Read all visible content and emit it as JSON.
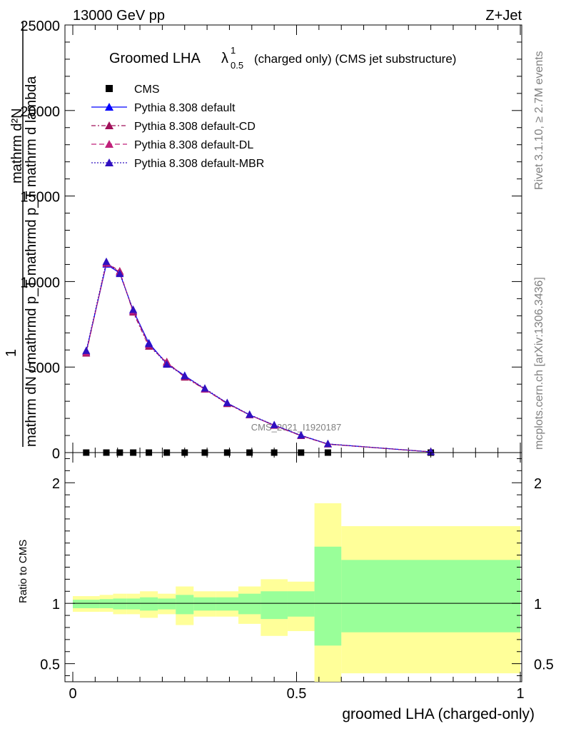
{
  "header": {
    "left": "13000 GeV pp",
    "right": "Z+Jet"
  },
  "side_labels": {
    "rivet": "Rivet 3.1.10, ≥ 2.7M events",
    "mcplots": "mcplots.cern.ch [arXiv:1306.3436]"
  },
  "chart_data": [
    {
      "type": "line",
      "title_main": "Groomed LHA",
      "title_lambda": "λ",
      "title_sup": "1",
      "title_sub": "0.5",
      "title_rest": "(charged only) (CMS jet substructure)",
      "ylabel_numerator": "1",
      "ylabel_denominator": "mathrm dN / mathrmd p_T mathrmd p_T mathrm d lambda",
      "ylabel_overlap": "mathrm d²N",
      "watermark": "CMS_2021_I1920187",
      "ylim": [
        0,
        25000
      ],
      "yticks": [
        "0",
        "5000",
        "10000",
        "15000",
        "20000",
        "25000"
      ],
      "x": [
        0.03,
        0.075,
        0.105,
        0.135,
        0.17,
        0.21,
        0.25,
        0.295,
        0.345,
        0.395,
        0.45,
        0.51,
        0.57,
        0.8
      ],
      "cms_values": [
        0,
        0,
        0,
        0,
        0,
        0,
        0,
        0,
        0,
        0,
        0,
        0,
        0,
        0
      ],
      "series": [
        {
          "name": "CMS",
          "color": "#000000",
          "marker": "square"
        },
        {
          "name": "Pythia 8.308 default",
          "color": "#0000ff",
          "dash": "",
          "values": [
            5900,
            11000,
            10500,
            8300,
            6400,
            5200,
            4500,
            3700,
            2900,
            2200,
            1600,
            1000,
            500,
            40
          ]
        },
        {
          "name": "Pythia 8.308 default-CD",
          "color": "#a0105a",
          "dash": "6,3,2,3",
          "values": [
            5800,
            11100,
            10600,
            8200,
            6200,
            5300,
            4400,
            3700,
            2850,
            2200,
            1580,
            980,
            490,
            40
          ]
        },
        {
          "name": "Pythia 8.308 default-DL",
          "color": "#c0207a",
          "dash": "7,4",
          "values": [
            5850,
            11050,
            10550,
            8250,
            6300,
            5250,
            4450,
            3700,
            2880,
            2200,
            1590,
            990,
            495,
            40
          ]
        },
        {
          "name": "Pythia 8.308 default-MBR",
          "color": "#3010c0",
          "dash": "2,2",
          "values": [
            5950,
            11150,
            10450,
            8350,
            6350,
            5150,
            4480,
            3750,
            2900,
            2220,
            1610,
            1010,
            505,
            40
          ]
        }
      ]
    },
    {
      "type": "area",
      "ylabel": "Ratio to CMS",
      "xlabel": "groomed LHA (charged-only)",
      "ylim": [
        0.35,
        2.25
      ],
      "yticks": [
        "0.5",
        "1",
        "2"
      ],
      "xlim": [
        0,
        1
      ],
      "xticks": [
        "0",
        "0.5",
        "1"
      ],
      "bins": [
        {
          "x0": 0.0,
          "x1": 0.06,
          "y_lo": 0.93,
          "y_hi": 1.06,
          "g_lo": 0.96,
          "g_hi": 1.03
        },
        {
          "x0": 0.06,
          "x1": 0.09,
          "y_lo": 0.93,
          "y_hi": 1.07,
          "g_lo": 0.96,
          "g_hi": 1.035
        },
        {
          "x0": 0.09,
          "x1": 0.12,
          "y_lo": 0.91,
          "y_hi": 1.08,
          "g_lo": 0.95,
          "g_hi": 1.04
        },
        {
          "x0": 0.12,
          "x1": 0.15,
          "y_lo": 0.91,
          "y_hi": 1.08,
          "g_lo": 0.95,
          "g_hi": 1.04
        },
        {
          "x0": 0.15,
          "x1": 0.19,
          "y_lo": 0.88,
          "y_hi": 1.1,
          "g_lo": 0.94,
          "g_hi": 1.05
        },
        {
          "x0": 0.19,
          "x1": 0.23,
          "y_lo": 0.91,
          "y_hi": 1.08,
          "g_lo": 0.95,
          "g_hi": 1.04
        },
        {
          "x0": 0.23,
          "x1": 0.27,
          "y_lo": 0.82,
          "y_hi": 1.14,
          "g_lo": 0.91,
          "g_hi": 1.07
        },
        {
          "x0": 0.27,
          "x1": 0.32,
          "y_lo": 0.89,
          "y_hi": 1.1,
          "g_lo": 0.94,
          "g_hi": 1.05
        },
        {
          "x0": 0.32,
          "x1": 0.37,
          "y_lo": 0.89,
          "y_hi": 1.1,
          "g_lo": 0.94,
          "g_hi": 1.05
        },
        {
          "x0": 0.37,
          "x1": 0.42,
          "y_lo": 0.83,
          "y_hi": 1.14,
          "g_lo": 0.91,
          "g_hi": 1.08
        },
        {
          "x0": 0.42,
          "x1": 0.48,
          "y_lo": 0.73,
          "y_hi": 1.2,
          "g_lo": 0.87,
          "g_hi": 1.1
        },
        {
          "x0": 0.48,
          "x1": 0.54,
          "y_lo": 0.77,
          "y_hi": 1.18,
          "g_lo": 0.89,
          "g_hi": 1.1
        },
        {
          "x0": 0.54,
          "x1": 0.6,
          "y_lo": 0.35,
          "y_hi": 1.83,
          "g_lo": 0.65,
          "g_hi": 1.47
        },
        {
          "x0": 0.6,
          "x1": 1.0,
          "y_lo": 0.42,
          "y_hi": 1.64,
          "g_lo": 0.76,
          "g_hi": 1.36
        }
      ],
      "band_colors": {
        "outer": "#ffff99",
        "inner": "#99ff99"
      }
    }
  ]
}
